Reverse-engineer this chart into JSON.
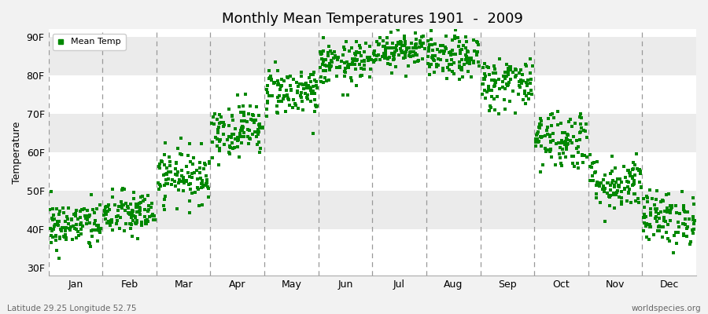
{
  "title": "Monthly Mean Temperatures 1901  -  2009",
  "ylabel": "Temperature",
  "xlabel_months": [
    "Jan",
    "Feb",
    "Mar",
    "Apr",
    "May",
    "Jun",
    "Jul",
    "Aug",
    "Sep",
    "Oct",
    "Nov",
    "Dec"
  ],
  "yticks": [
    30,
    40,
    50,
    60,
    70,
    80,
    90
  ],
  "ytick_labels": [
    "30F",
    "40F",
    "50F",
    "60F",
    "70F",
    "80F",
    "90F"
  ],
  "ylim": [
    28,
    92
  ],
  "xlim": [
    0,
    12
  ],
  "background_color": "#f2f2f2",
  "plot_bg_color": "#ffffff",
  "band_colors": [
    "#ffffff",
    "#ebebeb"
  ],
  "marker_color": "#008800",
  "marker_size": 3.5,
  "legend_label": "Mean Temp",
  "footer_left": "Latitude 29.25 Longitude 52.75",
  "footer_right": "worldspecies.org",
  "mean_temps_F": [
    41.0,
    44.0,
    54.0,
    66.0,
    76.0,
    83.0,
    87.0,
    84.5,
    78.0,
    63.5,
    52.0,
    43.0
  ],
  "std_devs": [
    3.2,
    3.0,
    3.5,
    3.5,
    3.2,
    2.8,
    2.5,
    2.8,
    3.5,
    4.0,
    3.5,
    3.5
  ],
  "n_years": 109,
  "seed": 42
}
